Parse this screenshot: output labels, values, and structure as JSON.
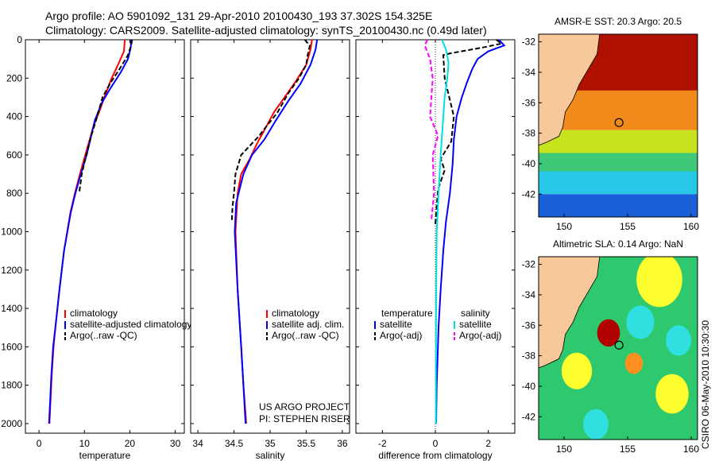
{
  "header": {
    "line1": "Argo profile: AO 5901092_131 29-Apr-2010 20100430_193 37.302S 154.325E",
    "line2": "Climatology: CARS2009. Satellite-adjusted climatology: synTS_20100430.nc (0.49d later)"
  },
  "project_note": {
    "line1": "US ARGO PROJECT",
    "line2": "PI: STEPHEN RISER"
  },
  "side_label": "CSIRO 06-May-2010 10:30:30",
  "colors": {
    "climatology": "#ff0000",
    "satellite": "#0000ff",
    "argo": "#000000",
    "cyan": "#00e0e0",
    "magenta": "#ff00ff",
    "land": "#f7c89a"
  },
  "chart_data": [
    {
      "type": "line",
      "xlabel": "temperature",
      "ylabel": "",
      "xlim": [
        -3,
        32
      ],
      "ylim": [
        2050,
        0
      ],
      "xticks": [
        "0",
        "10",
        "20",
        "30"
      ],
      "yticks": [
        "0",
        "200",
        "400",
        "600",
        "800",
        "1000",
        "1200",
        "1400",
        "1600",
        "1800",
        "2000"
      ],
      "legend": {
        "position": "lower-right",
        "entries": [
          "climatology",
          "satellite-adjusted climatology",
          "Argo(..raw -QC)"
        ]
      },
      "series": [
        {
          "name": "climatology",
          "color": "#ff0000",
          "x": [
            18.9,
            18.7,
            17.6,
            16.0,
            14.7,
            13.5,
            12.0,
            10.2,
            9.0,
            7.9,
            6.9,
            5.5,
            4.5,
            3.6,
            3.2,
            2.8,
            2.5,
            2.3
          ],
          "y": [
            0,
            60,
            120,
            200,
            280,
            360,
            450,
            600,
            700,
            800,
            900,
            1100,
            1300,
            1500,
            1600,
            1750,
            1900,
            2000
          ]
        },
        {
          "name": "satellite-adjusted climatology",
          "color": "#0000ff",
          "x": [
            20.3,
            20.2,
            19.6,
            18.0,
            15.8,
            13.8,
            12.3,
            10.5,
            9.2,
            8.0,
            7.0,
            5.5,
            4.5,
            3.6,
            3.1,
            2.7,
            2.4,
            2.2
          ],
          "y": [
            0,
            40,
            100,
            170,
            250,
            330,
            420,
            600,
            700,
            800,
            900,
            1100,
            1300,
            1500,
            1600,
            1750,
            1900,
            2000
          ]
        },
        {
          "name": "Argo(..raw -QC)",
          "color": "#000000",
          "dashed": true,
          "x": [
            20.5,
            20.3,
            19.6,
            17.8,
            15.6,
            14.0,
            12.8,
            11.5,
            10.4,
            9.4,
            8.9
          ],
          "y": [
            0,
            30,
            80,
            150,
            230,
            300,
            400,
            500,
            600,
            700,
            790
          ]
        }
      ]
    },
    {
      "type": "line",
      "xlabel": "salinity",
      "ylabel": "",
      "xlim": [
        33.9,
        36.1
      ],
      "ylim": [
        2050,
        0
      ],
      "xticks": [
        "34",
        "34.5",
        "35",
        "35.5",
        "36"
      ],
      "legend": {
        "position": "lower-right",
        "entries": [
          "climatology",
          "satellite adj. clim.",
          "Argo(..raw -QC)"
        ]
      },
      "series": [
        {
          "name": "climatology",
          "color": "#ff0000",
          "x": [
            35.58,
            35.56,
            35.5,
            35.35,
            35.2,
            35.05,
            34.95,
            34.82,
            34.72,
            34.6,
            34.55,
            34.52,
            34.55,
            34.6,
            34.63,
            34.67
          ],
          "y": [
            0,
            50,
            130,
            220,
            300,
            380,
            450,
            540,
            620,
            700,
            800,
            1000,
            1300,
            1600,
            1800,
            2000
          ]
        },
        {
          "name": "satellite adj. clim.",
          "color": "#0000ff",
          "x": [
            35.65,
            35.63,
            35.56,
            35.42,
            35.25,
            35.08,
            34.92,
            34.75,
            34.63,
            34.53,
            34.51,
            34.55,
            34.6,
            34.63,
            34.66
          ],
          "y": [
            0,
            50,
            130,
            230,
            320,
            420,
            520,
            600,
            700,
            850,
            1000,
            1300,
            1600,
            1800,
            2000
          ]
        },
        {
          "name": "Argo(..raw -QC)",
          "color": "#000000",
          "dashed": true,
          "x": [
            35.48,
            35.55,
            35.52,
            35.5,
            35.4,
            35.25,
            35.1,
            34.95,
            34.85,
            34.75,
            34.6,
            34.52,
            34.5,
            34.48,
            34.47
          ],
          "y": [
            0,
            30,
            80,
            130,
            200,
            280,
            380,
            450,
            500,
            540,
            600,
            700,
            800,
            870,
            940
          ]
        }
      ]
    },
    {
      "type": "line",
      "xlabel": "difference from climatology",
      "ylabel": "",
      "xlim": [
        -3,
        3
      ],
      "ylim": [
        2050,
        0
      ],
      "xticks": [
        "-2",
        "0",
        "2"
      ],
      "legend": {
        "position": "lower-right",
        "columns": [
          {
            "header": "temperature",
            "entries": [
              "satellite",
              "Argo(-adj)"
            ]
          },
          {
            "header": "salinity",
            "entries": [
              "satellite",
              "Argo(-adj)"
            ]
          }
        ]
      },
      "series": [
        {
          "name": "satellite",
          "group": "temperature",
          "color": "#0000ff",
          "x": [
            2.4,
            2.6,
            2.0,
            1.6,
            1.4,
            1.2,
            1.0,
            0.8,
            0.7,
            0.65,
            0.55,
            0.4,
            0.3,
            0.2,
            0.12,
            0.05,
            0.03
          ],
          "y": [
            0,
            30,
            60,
            100,
            150,
            220,
            300,
            400,
            520,
            650,
            800,
            950,
            1100,
            1300,
            1500,
            1800,
            2000
          ]
        },
        {
          "name": "Argo(-adj)",
          "group": "temperature",
          "color": "#000000",
          "dashed": true,
          "x": [
            2.3,
            2.5,
            1.8,
            1.0,
            0.6,
            0.3,
            0.35,
            0.7,
            0.6,
            0.2,
            0.35,
            0.1,
            0.0
          ],
          "y": [
            0,
            20,
            40,
            60,
            70,
            80,
            200,
            400,
            530,
            620,
            680,
            780,
            960
          ]
        },
        {
          "name": "satellite",
          "group": "salinity",
          "color": "#00e0e0",
          "x": [
            0.25,
            0.4,
            0.5,
            0.45,
            0.35,
            0.3,
            0.2,
            0.12,
            0.05,
            0.03,
            0.02,
            0.02
          ],
          "y": [
            0,
            50,
            120,
            200,
            300,
            400,
            600,
            800,
            1000,
            1300,
            1700,
            2000
          ]
        },
        {
          "name": "Argo(-adj)",
          "group": "salinity",
          "color": "#ff00ff",
          "dashed": true,
          "x": [
            -0.3,
            -0.4,
            -0.2,
            -0.1,
            -0.2,
            0.1,
            -0.1,
            -0.05,
            -0.15
          ],
          "y": [
            0,
            30,
            100,
            200,
            400,
            500,
            600,
            800,
            940
          ]
        }
      ]
    },
    {
      "type": "heatmap",
      "title": "AMSR-E SST: 20.3 Argo: 20.5",
      "xticks": [
        "150",
        "155",
        "160"
      ],
      "yticks": [
        "-32",
        "-34",
        "-36",
        "-38",
        "-40",
        "-42"
      ],
      "xlim": [
        148,
        160.5
      ],
      "ylim": [
        -43.5,
        -31.5
      ],
      "argo_position": {
        "lon": 154.325,
        "lat": -37.302
      },
      "color_bands": [
        {
          "lat_from": -31.5,
          "lat_to": -35.2,
          "color": "#b01000"
        },
        {
          "lat_from": -35.2,
          "lat_to": -37.8,
          "color": "#f08a1a"
        },
        {
          "lat_from": -37.8,
          "lat_to": -39.3,
          "color": "#c8e41e"
        },
        {
          "lat_from": -39.3,
          "lat_to": -40.5,
          "color": "#3ec878"
        },
        {
          "lat_from": -40.5,
          "lat_to": -42.0,
          "color": "#26c8e6"
        },
        {
          "lat_from": -42.0,
          "lat_to": -43.5,
          "color": "#1a5ed8"
        }
      ]
    },
    {
      "type": "heatmap",
      "title": "Altimetric SLA: 0.14 Argo: NaN",
      "xticks": [
        "150",
        "155",
        "160"
      ],
      "yticks": [
        "-32",
        "-34",
        "-36",
        "-38",
        "-40",
        "-42"
      ],
      "xlim": [
        148,
        160.5
      ],
      "ylim": [
        -43.5,
        -31.5
      ],
      "argo_position": {
        "lon": 154.325,
        "lat": -37.302
      },
      "background_color": "#2ec86e",
      "blobs": [
        {
          "lon": 157.5,
          "lat": -33.0,
          "r": 1.8,
          "color": "#ffff30"
        },
        {
          "lon": 153.5,
          "lat": -36.5,
          "r": 0.9,
          "color": "#b00000"
        },
        {
          "lon": 156.0,
          "lat": -35.8,
          "r": 1.1,
          "color": "#30e0e0"
        },
        {
          "lon": 151.0,
          "lat": -39.0,
          "r": 1.2,
          "color": "#ffff30"
        },
        {
          "lon": 155.5,
          "lat": -38.5,
          "r": 0.7,
          "color": "#ff9020"
        },
        {
          "lon": 158.5,
          "lat": -40.5,
          "r": 1.3,
          "color": "#ffff30"
        },
        {
          "lon": 152.5,
          "lat": -42.5,
          "r": 1.0,
          "color": "#30e0e0"
        },
        {
          "lon": 159.0,
          "lat": -37.0,
          "r": 1.0,
          "color": "#30e0e0"
        }
      ]
    }
  ]
}
